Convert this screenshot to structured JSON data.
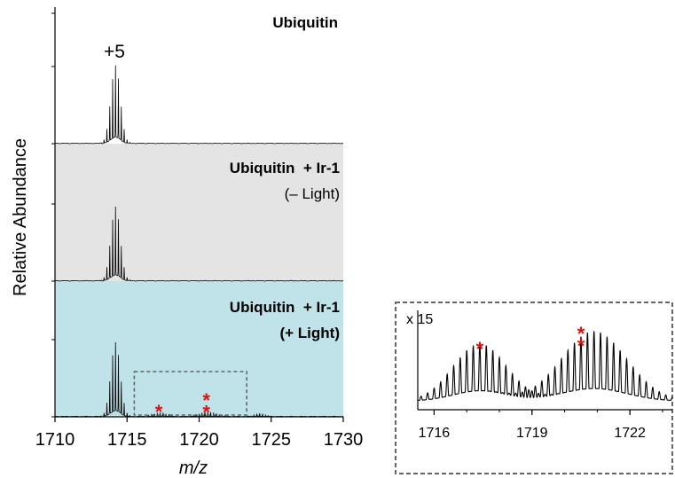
{
  "chart_data": {
    "type": "line",
    "ylabel": "Relative Abundance",
    "xlabel": "m/z",
    "xlim": [
      1710,
      1730
    ],
    "xticks": [
      1710,
      1715,
      1720,
      1725,
      1730
    ],
    "grid": false,
    "panels": [
      {
        "title": "Ubiquitin",
        "subtitle": "",
        "background": "#ffffff",
        "peak_annotation": "+5",
        "series": [
          {
            "peaks": [
              {
                "center": 1714.2,
                "height": 1.0,
                "width": 0.75
              }
            ]
          }
        ]
      },
      {
        "title": "Ubiquitin  + Ir-1",
        "subtitle": "(– Light)",
        "background": "#e4e4e4",
        "series": [
          {
            "peaks": [
              {
                "center": 1714.2,
                "height": 0.95,
                "width": 0.75
              }
            ]
          }
        ]
      },
      {
        "title": "Ubiquitin  + Ir-1",
        "subtitle": "(+ Light)",
        "background": "#bfe3e9",
        "markers": [
          {
            "x": 1717.2,
            "symbol": "*"
          },
          {
            "x": 1720.5,
            "symbol": "**"
          }
        ],
        "series": [
          {
            "peaks": [
              {
                "center": 1714.2,
                "height": 0.95,
                "width": 0.75
              },
              {
                "center": 1717.3,
                "height": 0.05,
                "width": 1.1
              },
              {
                "center": 1720.6,
                "height": 0.06,
                "width": 1.4
              },
              {
                "center": 1724.2,
                "height": 0.04,
                "width": 0.8
              }
            ]
          }
        ]
      }
    ],
    "inset": {
      "magnification": "x 15",
      "xlim": [
        1715.5,
        1723.3
      ],
      "xticks": [
        1716,
        1719,
        1722
      ],
      "markers": [
        {
          "x": 1717.4,
          "symbol": "*"
        },
        {
          "x": 1720.5,
          "symbol": "**"
        }
      ],
      "series": [
        {
          "peaks": [
            {
              "center": 1717.4,
              "height": 0.68,
              "width": 1.3
            },
            {
              "center": 1720.9,
              "height": 0.83,
              "width": 1.6
            }
          ]
        }
      ]
    },
    "colors": {
      "trace": "#000000",
      "marker": "#e01010",
      "zoom_box": "#666666"
    }
  }
}
